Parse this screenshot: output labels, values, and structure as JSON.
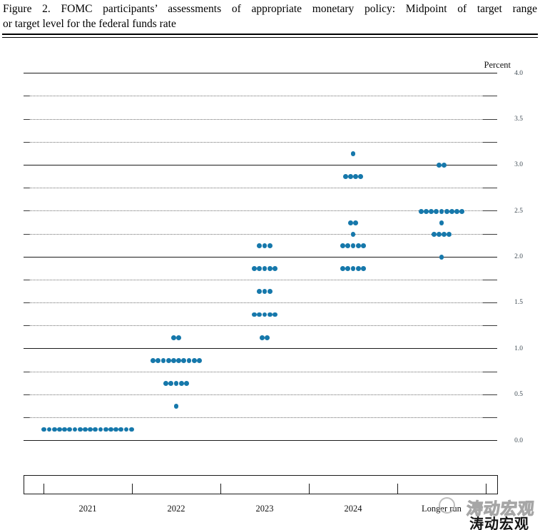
{
  "figure": {
    "title_line1": "Figure 2.  FOMC participants’ assessments of appropriate monetary policy:  Midpoint of target range",
    "title_line2": "or target level for the federal funds rate"
  },
  "watermarks": {
    "gray_text": "涛动宏观",
    "black_text": "涛动宏观"
  },
  "chart_data": {
    "type": "scatter",
    "title": "FOMC participants’ assessments of appropriate monetary policy: Midpoint of target range or target level for the federal funds rate",
    "xlabel": "",
    "ylabel": "Percent",
    "dot_color": "#1678ab",
    "grid": "on",
    "y_axis": {
      "unit_label": "Percent",
      "min": 0.0,
      "max": 4.0,
      "gridline_step": 0.25,
      "label_step": 0.5,
      "tick_labels": [
        "4.0",
        "3.5",
        "3.0",
        "2.5",
        "2.0",
        "1.5",
        "1.0",
        "0.5",
        "0.0"
      ]
    },
    "categories": [
      "2021",
      "2022",
      "2023",
      "2024",
      "Longer run"
    ],
    "series": [
      {
        "name": "2021",
        "points": [
          {
            "rate": 0.125,
            "count": 18
          }
        ]
      },
      {
        "name": "2022",
        "points": [
          {
            "rate": 1.125,
            "count": 2
          },
          {
            "rate": 0.875,
            "count": 10
          },
          {
            "rate": 0.625,
            "count": 5
          },
          {
            "rate": 0.375,
            "count": 1
          }
        ]
      },
      {
        "name": "2023",
        "points": [
          {
            "rate": 2.125,
            "count": 3
          },
          {
            "rate": 1.875,
            "count": 5
          },
          {
            "rate": 1.625,
            "count": 3
          },
          {
            "rate": 1.375,
            "count": 5
          },
          {
            "rate": 1.125,
            "count": 2
          }
        ]
      },
      {
        "name": "2024",
        "points": [
          {
            "rate": 3.125,
            "count": 1
          },
          {
            "rate": 2.875,
            "count": 4
          },
          {
            "rate": 2.375,
            "count": 2
          },
          {
            "rate": 2.25,
            "count": 1
          },
          {
            "rate": 2.125,
            "count": 5
          },
          {
            "rate": 1.875,
            "count": 5
          }
        ]
      },
      {
        "name": "Longer run",
        "points": [
          {
            "rate": 3.0,
            "count": 2
          },
          {
            "rate": 2.5,
            "count": 9
          },
          {
            "rate": 2.375,
            "count": 1
          },
          {
            "rate": 2.25,
            "count": 4
          },
          {
            "rate": 2.0,
            "count": 1
          }
        ]
      }
    ]
  }
}
